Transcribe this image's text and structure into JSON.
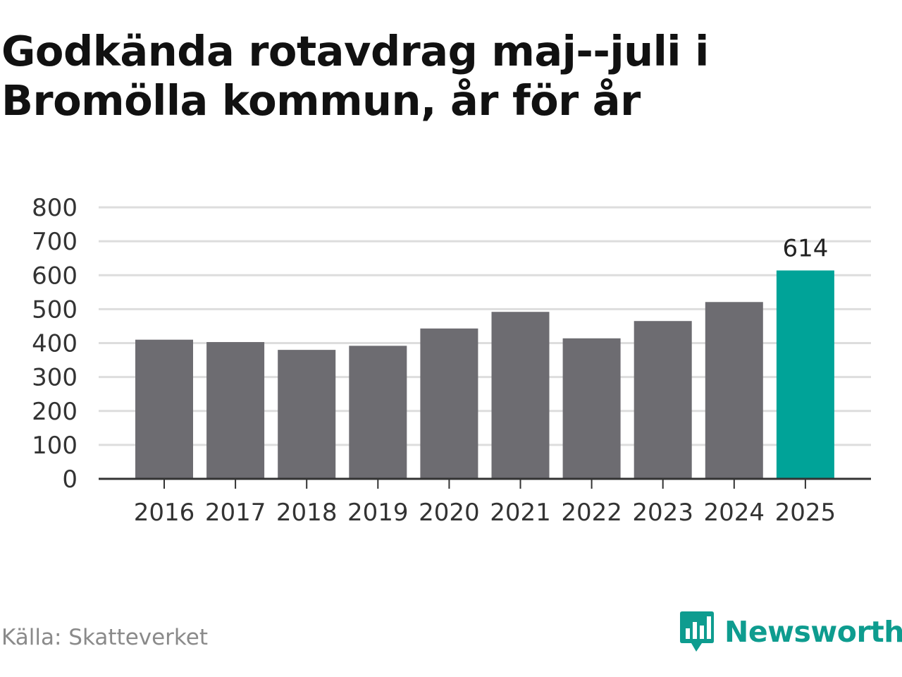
{
  "chart_data": {
    "type": "bar",
    "title": "Godkända rotavdrag maj--juli i Bromölla kommun, år för år",
    "categories": [
      "2016",
      "2017",
      "2018",
      "2019",
      "2020",
      "2021",
      "2022",
      "2023",
      "2024",
      "2025"
    ],
    "values": [
      410,
      403,
      380,
      392,
      443,
      492,
      414,
      465,
      521,
      614
    ],
    "highlight_index": 9,
    "data_labels": [
      {
        "index": 9,
        "text": "614"
      }
    ],
    "ylim": [
      0,
      800
    ],
    "yticks": [
      0,
      100,
      200,
      300,
      400,
      500,
      600,
      700,
      800
    ],
    "grid": true,
    "xlabel": "",
    "ylabel": "",
    "colors": {
      "bar": "#6d6c71",
      "highlight": "#00a398",
      "grid": "#dddddd",
      "axis": "#333333"
    }
  },
  "footer": {
    "source": "Källa: Skatteverket",
    "brand": "Newsworthy",
    "brand_icon": "bar-chart-speech-bubble-icon",
    "brand_color": "#0e9c8f"
  }
}
